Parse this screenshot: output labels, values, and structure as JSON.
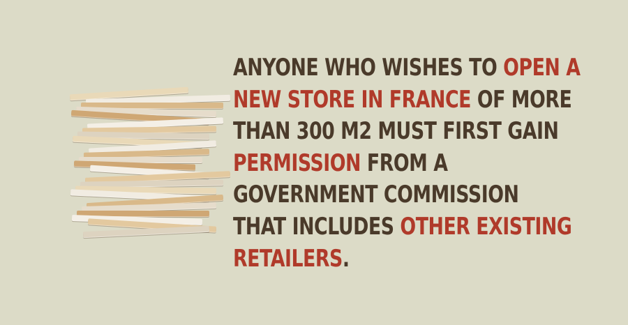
{
  "colors": {
    "background": "#dcdbc7",
    "text": "#4a3a2a",
    "highlight": "#b03a2a"
  },
  "image": {
    "name": "stack-of-papers"
  },
  "fact": {
    "lines": [
      [
        {
          "text": "Anyone who wishes to ",
          "hl": false
        },
        {
          "text": "open a",
          "hl": true
        }
      ],
      [
        {
          "text": "new store in France",
          "hl": true
        },
        {
          "text": " of more",
          "hl": false
        }
      ],
      [
        {
          "text": "than 300 m2 must first gain",
          "hl": false
        }
      ],
      [
        {
          "text": "permission",
          "hl": true
        },
        {
          "text": " from a",
          "hl": false
        }
      ],
      [
        {
          "text": "government commission",
          "hl": false
        }
      ],
      [
        {
          "text": "that includes ",
          "hl": false
        },
        {
          "text": "other existing",
          "hl": true
        }
      ],
      [
        {
          "text": "retailers",
          "hl": true
        },
        {
          "text": ".",
          "hl": false
        }
      ]
    ]
  }
}
